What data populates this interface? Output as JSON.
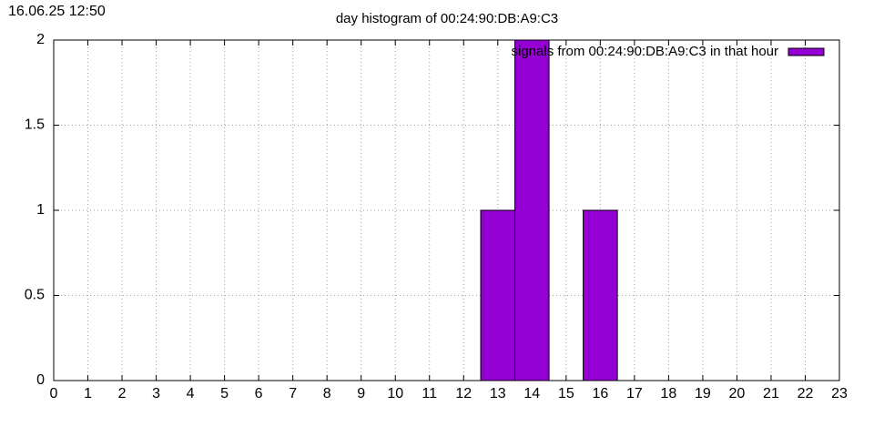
{
  "chart_data": {
    "type": "bar",
    "timestamp": "16.06.25 12:50",
    "title": "day histogram of 00:24:90:DB:A9:C3",
    "x": [
      13,
      14,
      16
    ],
    "series": [
      {
        "name": "signals from 00:24:90:DB:A9:C3 in that hour",
        "color": "#9400d3",
        "values": [
          1,
          2,
          1
        ]
      }
    ],
    "xlim": [
      0,
      23
    ],
    "xticks": [
      0,
      1,
      2,
      3,
      4,
      5,
      6,
      7,
      8,
      9,
      10,
      11,
      12,
      13,
      14,
      15,
      16,
      17,
      18,
      19,
      20,
      21,
      22,
      23
    ],
    "ylim": [
      0,
      2
    ],
    "yticks": [
      0,
      0.5,
      1,
      1.5,
      2
    ],
    "grid": true,
    "legend": "top-right"
  }
}
